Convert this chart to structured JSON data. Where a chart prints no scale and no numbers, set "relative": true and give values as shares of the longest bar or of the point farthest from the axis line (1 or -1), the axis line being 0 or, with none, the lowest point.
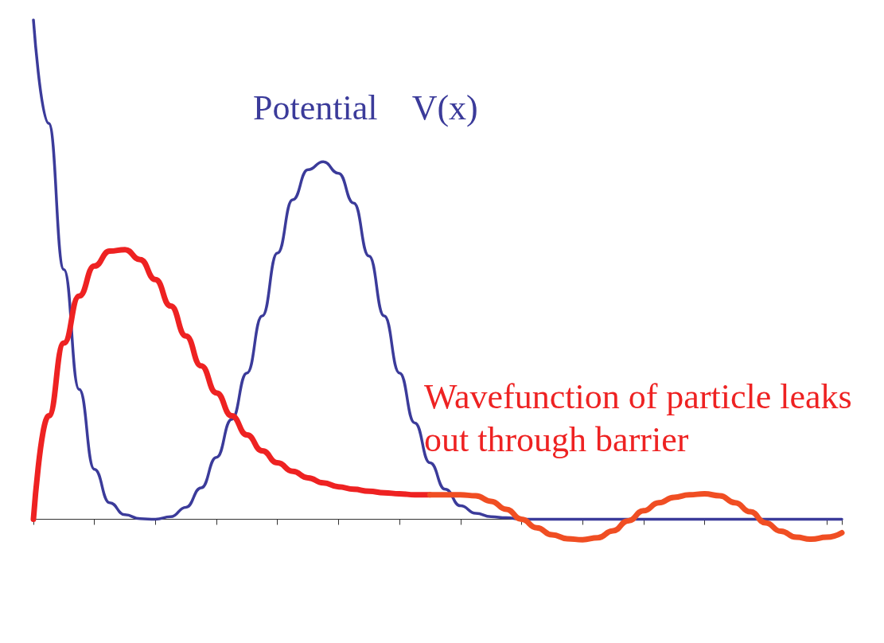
{
  "chart_data": {
    "type": "line",
    "relative": true,
    "legend": false,
    "grid": false,
    "marker": "none",
    "categories": [
      null,
      null,
      null,
      null,
      null,
      null,
      null,
      null,
      null,
      null,
      null,
      null,
      null,
      null,
      null,
      null,
      null,
      null,
      null,
      null,
      null,
      null,
      null,
      null,
      null,
      null,
      null,
      null,
      null,
      null,
      null,
      null,
      null,
      null,
      null,
      null,
      null,
      null,
      null,
      null,
      null,
      null,
      null,
      null,
      null,
      null,
      null,
      null,
      null,
      null,
      null,
      null,
      null,
      null
    ],
    "series": [
      {
        "name": "Potential    V(x)",
        "color": "#3b3b9a",
        "values": [
          1.0,
          0.793,
          0.5,
          0.26,
          0.1,
          0.033,
          0.009,
          0.001,
          0,
          0.005,
          0.024,
          0.063,
          0.124,
          0.2,
          0.293,
          0.407,
          0.533,
          0.64,
          0.7,
          0.716,
          0.693,
          0.633,
          0.527,
          0.407,
          0.293,
          0.193,
          0.113,
          0.06,
          0.027,
          0.012,
          0.005,
          0.003,
          0,
          0,
          0,
          0,
          0,
          0,
          0,
          0,
          0,
          0,
          0,
          0,
          0,
          0,
          0,
          0,
          0,
          0,
          0,
          0,
          0,
          0
        ]
      },
      {
        "name": "Wavefunction of particle leaks out through barrier",
        "color": "#ee2222",
        "values": [
          0,
          0.207,
          0.353,
          0.447,
          0.507,
          0.537,
          0.54,
          0.52,
          0.48,
          0.427,
          0.367,
          0.307,
          0.253,
          0.207,
          0.169,
          0.137,
          0.113,
          0.096,
          0.083,
          0.073,
          0.065,
          0.06,
          0.056,
          0.053,
          0.051,
          0.049,
          0.049,
          null,
          null,
          null,
          null,
          null,
          null,
          null,
          null,
          null,
          null,
          null,
          null,
          null,
          null,
          null,
          null,
          null,
          null,
          null,
          null,
          null,
          null,
          null,
          null,
          null,
          null,
          null
        ]
      },
      {
        "color": "#f04e23",
        "values": [
          null,
          null,
          null,
          null,
          null,
          null,
          null,
          null,
          null,
          null,
          null,
          null,
          null,
          null,
          null,
          null,
          null,
          null,
          null,
          null,
          null,
          null,
          null,
          null,
          null,
          null,
          0.049,
          0.049,
          0.049,
          0.047,
          0.036,
          0.02,
          0,
          -0.017,
          -0.031,
          -0.039,
          -0.041,
          -0.037,
          -0.023,
          -0.003,
          0.017,
          0.033,
          0.044,
          0.049,
          0.051,
          0.047,
          0.033,
          0.015,
          -0.007,
          -0.024,
          -0.036,
          -0.04,
          -0.036,
          -0.027
        ]
      }
    ]
  }
}
